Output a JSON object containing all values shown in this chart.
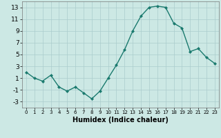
{
  "x": [
    0,
    1,
    2,
    3,
    4,
    5,
    6,
    7,
    8,
    9,
    10,
    11,
    12,
    13,
    14,
    15,
    16,
    17,
    18,
    19,
    20,
    21,
    22,
    23
  ],
  "y": [
    2,
    1,
    0.5,
    1.5,
    -0.5,
    -1.2,
    -0.5,
    -1.5,
    -2.5,
    -1.2,
    1,
    3.2,
    5.8,
    9,
    11.5,
    13,
    13.2,
    13,
    10.3,
    9.5,
    5.5,
    6,
    4.5,
    3.5
  ],
  "line_color": "#1a7a6e",
  "marker": "D",
  "marker_size": 2,
  "linewidth": 1.0,
  "xlabel": "Humidex (Indice chaleur)",
  "xlim": [
    -0.5,
    23.5
  ],
  "ylim": [
    -4,
    14
  ],
  "yticks": [
    -3,
    -1,
    1,
    3,
    5,
    7,
    9,
    11,
    13
  ],
  "xticks": [
    0,
    1,
    2,
    3,
    4,
    5,
    6,
    7,
    8,
    9,
    10,
    11,
    12,
    13,
    14,
    15,
    16,
    17,
    18,
    19,
    20,
    21,
    22,
    23
  ],
  "bg_color": "#cce8e4",
  "grid_color": "#aacccc",
  "xlabel_fontsize": 7,
  "tick_fontsize": 6.5
}
